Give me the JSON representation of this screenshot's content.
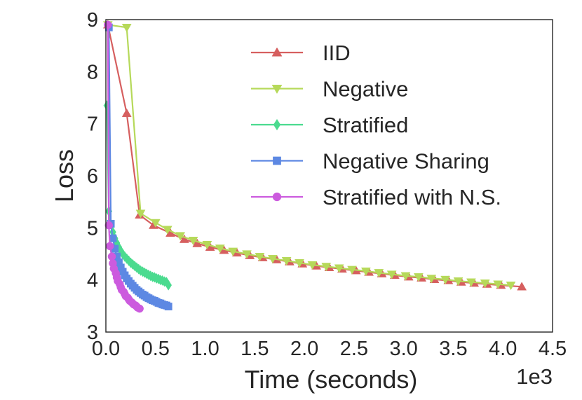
{
  "chart_data": {
    "type": "line",
    "title": "",
    "xlabel": "Time (seconds)",
    "ylabel": "Loss",
    "x_offset_label": "1e3",
    "xlim": [
      0.0,
      4.5
    ],
    "ylim": [
      3,
      9
    ],
    "xticks": [
      0.0,
      0.5,
      1.0,
      1.5,
      2.0,
      2.5,
      3.0,
      3.5,
      4.0,
      4.5
    ],
    "xtick_labels": [
      "0.0",
      "0.5",
      "1.0",
      "1.5",
      "2.0",
      "2.5",
      "3.0",
      "3.5",
      "4.0",
      "4.5"
    ],
    "yticks": [
      3,
      4,
      5,
      6,
      7,
      8,
      9
    ],
    "ytick_labels": [
      "3",
      "4",
      "5",
      "6",
      "7",
      "8",
      "9"
    ],
    "grid": false,
    "legend_position": "top-right",
    "series": [
      {
        "name": "IID",
        "color": "#d65f5f",
        "marker": "triangle-up",
        "x": [
          0.02,
          0.21,
          0.34,
          0.48,
          0.65,
          0.79,
          0.92,
          1.05,
          1.19,
          1.32,
          1.45,
          1.58,
          1.72,
          1.85,
          1.98,
          2.12,
          2.25,
          2.38,
          2.52,
          2.65,
          2.78,
          2.91,
          3.05,
          3.18,
          3.31,
          3.45,
          3.58,
          3.71,
          3.84,
          3.98,
          4.19
        ],
        "y": [
          8.9,
          7.2,
          5.25,
          5.05,
          4.9,
          4.78,
          4.7,
          4.63,
          4.57,
          4.52,
          4.47,
          4.43,
          4.39,
          4.35,
          4.31,
          4.27,
          4.24,
          4.21,
          4.18,
          4.15,
          4.12,
          4.09,
          4.06,
          4.04,
          4.01,
          3.99,
          3.96,
          3.94,
          3.92,
          3.9,
          3.87
        ]
      },
      {
        "name": "Negative",
        "color": "#b6d95a",
        "marker": "triangle-down",
        "x": [
          0.02,
          0.21,
          0.35,
          0.5,
          0.62,
          0.75,
          0.88,
          1.02,
          1.15,
          1.28,
          1.42,
          1.55,
          1.68,
          1.82,
          1.95,
          2.08,
          2.22,
          2.35,
          2.48,
          2.62,
          2.75,
          2.88,
          3.02,
          3.15,
          3.28,
          3.42,
          3.55,
          3.68,
          3.82,
          3.95,
          4.08
        ],
        "y": [
          8.9,
          8.85,
          5.28,
          5.1,
          4.97,
          4.85,
          4.76,
          4.68,
          4.61,
          4.55,
          4.5,
          4.45,
          4.41,
          4.37,
          4.33,
          4.29,
          4.26,
          4.23,
          4.2,
          4.17,
          4.14,
          4.11,
          4.08,
          4.06,
          4.03,
          4.01,
          3.98,
          3.96,
          3.94,
          3.92,
          3.9
        ]
      },
      {
        "name": "Stratified",
        "color": "#4bdb8f",
        "marker": "diamond",
        "x": [
          0.01,
          0.03,
          0.05,
          0.07,
          0.09,
          0.11,
          0.13,
          0.15,
          0.17,
          0.19,
          0.21,
          0.23,
          0.25,
          0.27,
          0.29,
          0.31,
          0.33,
          0.35,
          0.37,
          0.39,
          0.41,
          0.43,
          0.45,
          0.47,
          0.49,
          0.51,
          0.53,
          0.55,
          0.57,
          0.59,
          0.61,
          0.63
        ],
        "y": [
          7.35,
          5.32,
          5.07,
          4.92,
          4.8,
          4.71,
          4.63,
          4.56,
          4.5,
          4.45,
          4.41,
          4.37,
          4.33,
          4.3,
          4.27,
          4.24,
          4.21,
          4.18,
          4.16,
          4.14,
          4.12,
          4.1,
          4.08,
          4.06,
          4.05,
          4.03,
          4.02,
          4.0,
          3.99,
          3.97,
          3.96,
          3.9
        ]
      },
      {
        "name": "Negative Sharing",
        "color": "#5d88e3",
        "marker": "square",
        "x": [
          0.03,
          0.05,
          0.07,
          0.09,
          0.11,
          0.13,
          0.15,
          0.17,
          0.19,
          0.21,
          0.23,
          0.25,
          0.27,
          0.29,
          0.31,
          0.33,
          0.35,
          0.37,
          0.39,
          0.41,
          0.43,
          0.45,
          0.47,
          0.49,
          0.51,
          0.53,
          0.55,
          0.57,
          0.59,
          0.61,
          0.63
        ],
        "y": [
          8.85,
          5.08,
          4.8,
          4.6,
          4.45,
          4.34,
          4.24,
          4.16,
          4.09,
          4.03,
          3.98,
          3.93,
          3.89,
          3.85,
          3.81,
          3.78,
          3.75,
          3.72,
          3.7,
          3.67,
          3.65,
          3.63,
          3.61,
          3.6,
          3.58,
          3.56,
          3.55,
          3.53,
          3.52,
          3.51,
          3.49
        ]
      },
      {
        "name": "Stratified with N.S.",
        "color": "#cc5bde",
        "marker": "circle",
        "x": [
          0.02,
          0.03,
          0.04,
          0.06,
          0.07,
          0.08,
          0.1,
          0.11,
          0.12,
          0.14,
          0.15,
          0.16,
          0.18,
          0.19,
          0.2,
          0.22,
          0.23,
          0.24,
          0.26,
          0.27,
          0.28,
          0.3,
          0.31,
          0.32,
          0.34
        ],
        "y": [
          8.9,
          5.05,
          4.65,
          4.45,
          4.32,
          4.22,
          4.13,
          4.05,
          3.98,
          3.92,
          3.86,
          3.81,
          3.77,
          3.73,
          3.69,
          3.66,
          3.63,
          3.6,
          3.57,
          3.55,
          3.53,
          3.51,
          3.49,
          3.47,
          3.45
        ]
      }
    ]
  }
}
